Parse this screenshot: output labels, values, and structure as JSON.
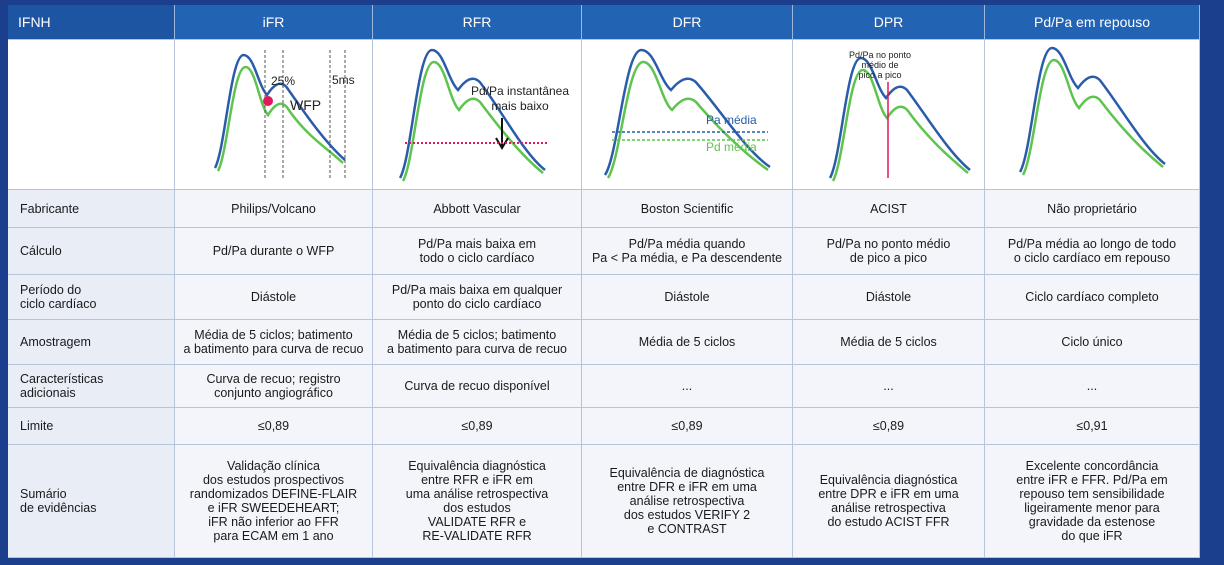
{
  "header": {
    "cells": [
      "IFNH",
      "iFR",
      "RFR",
      "DFR",
      "DPR",
      "Pd/Pa em repouso"
    ]
  },
  "figure": {
    "ifr": {
      "marker": "25%",
      "window": "WFP",
      "duration": "5ms"
    },
    "rfr": {
      "note": [
        "Pd/Pa instantânea",
        "mais baixo"
      ]
    },
    "dfr": {
      "pa": "Pa média",
      "pd": "Pd média"
    },
    "dpr": {
      "note": [
        "Pd/Pa no ponto",
        "médio de",
        "pico a pico"
      ]
    }
  },
  "table": {
    "rows": [
      {
        "label": [
          "Fabricante"
        ],
        "cells": [
          [
            "Philips/Volcano"
          ],
          [
            "Abbott Vascular"
          ],
          [
            "Boston Scientific"
          ],
          [
            "ACIST"
          ],
          [
            "Não proprietário"
          ]
        ]
      },
      {
        "label": [
          "Cálculo"
        ],
        "cells": [
          [
            "Pd/Pa durante o WFP"
          ],
          [
            "Pd/Pa mais baixa em",
            "todo o ciclo cardíaco"
          ],
          [
            "Pd/Pa média quando",
            "Pa < Pa média, e Pa descendente"
          ],
          [
            "Pd/Pa no ponto médio",
            "de pico a pico"
          ],
          [
            "Pd/Pa média ao longo de todo",
            "o ciclo cardíaco em repouso"
          ]
        ]
      },
      {
        "label": [
          "Período do",
          "ciclo cardíaco"
        ],
        "cells": [
          [
            "Diástole"
          ],
          [
            "Pd/Pa mais baixa em qualquer",
            "ponto do ciclo cardíaco"
          ],
          [
            "Diástole"
          ],
          [
            "Diástole"
          ],
          [
            "Ciclo cardíaco completo"
          ]
        ]
      },
      {
        "label": [
          "Amostragem"
        ],
        "cells": [
          [
            "Média de 5 ciclos; batimento",
            "a batimento para curva de recuo"
          ],
          [
            "Média de 5 ciclos; batimento",
            "a batimento para curva de recuo"
          ],
          [
            "Média de 5 ciclos"
          ],
          [
            "Média de 5 ciclos"
          ],
          [
            "Ciclo único"
          ]
        ]
      },
      {
        "label": [
          "Características",
          "adicionais"
        ],
        "cells": [
          [
            "Curva de recuo; registro",
            "conjunto angiográfico"
          ],
          [
            "Curva de recuo disponível"
          ],
          [
            "..."
          ],
          [
            "..."
          ],
          [
            "..."
          ]
        ]
      },
      {
        "label": [
          "Limite"
        ],
        "cells": [
          [
            "≤0,89"
          ],
          [
            "≤0,89"
          ],
          [
            "≤0,89"
          ],
          [
            "≤0,89"
          ],
          [
            "≤0,91"
          ]
        ]
      },
      {
        "label": [
          "Sumário",
          "de evidências"
        ],
        "cells": [
          [
            "Validação clínica",
            "dos estudos prospectivos",
            "randomizados DEFINE-FLAIR",
            "e  iFR SWEEDEHEART;",
            "iFR não inferior ao FFR",
            "para ECAM em 1 ano"
          ],
          [
            "Equivalência diagnóstica",
            "entre RFR e iFR em",
            "uma análise retrospectiva",
            "dos estudos",
            "VALIDATE RFR e",
            "RE-VALIDATE RFR"
          ],
          [
            "Equivalência de diagnóstica",
            "entre DFR e iFR em uma",
            "análise retrospectiva",
            "dos estudos VERIFY 2",
            "e CONTRAST"
          ],
          [
            "Equivalência diagnóstica",
            "entre DPR e  iFR em uma",
            "análise retrospectiva",
            "do estudo ACIST FFR"
          ],
          [
            "Excelente concordância",
            "entre iFR e FFR. Pd/Pa em",
            "repouso tem sensibilidade",
            "ligeiramente menor para",
            "gravidade da estenose",
            "do que iFR"
          ]
        ]
      }
    ]
  }
}
